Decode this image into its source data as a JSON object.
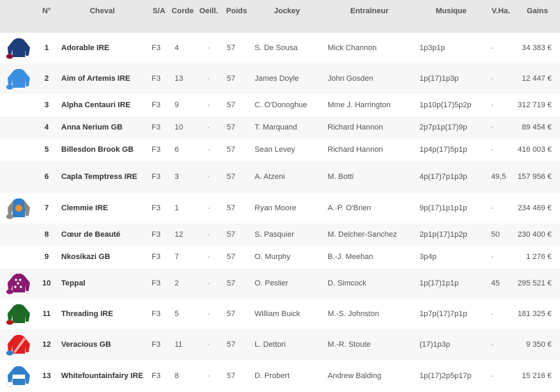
{
  "headers": {
    "silk": "",
    "num": "N°",
    "cheval": "Cheval",
    "sa": "S/A",
    "corde": "Corde",
    "oeill": "Oeill.",
    "poids": "Poids",
    "jockey": "Jockey",
    "entraineur": "Entraîneur",
    "musique": "Musique",
    "vha": "V.Ha.",
    "gains": "Gains"
  },
  "runners": [
    {
      "num": "1",
      "cheval": "Adorable IRE",
      "sa": "F3",
      "corde": "4",
      "oeill": "-",
      "poids": "57",
      "jockey": "S. De Sousa",
      "entraineur": "Mick Channon",
      "musique": "1p3p1p",
      "vha": "-",
      "gains": "34 383 €",
      "silk": {
        "body": "#1c3f7a",
        "sleeves": "#1c3f7a",
        "cap": "#8a1030",
        "mark": ""
      }
    },
    {
      "num": "2",
      "cheval": "Aim of Artemis IRE",
      "sa": "F3",
      "corde": "13",
      "oeill": "-",
      "poids": "57",
      "jockey": "James Doyle",
      "entraineur": "John Gosden",
      "musique": "1p(17)1p3p",
      "vha": "-",
      "gains": "12 447 €",
      "silk": {
        "body": "#3b8fe0",
        "sleeves": "#3b8fe0",
        "cap": "#3b8fe0",
        "mark": ""
      }
    },
    {
      "num": "3",
      "cheval": "Alpha Centauri IRE",
      "sa": "F3",
      "corde": "9",
      "oeill": "-",
      "poids": "57",
      "jockey": "C. O'Donoghue",
      "entraineur": "Mme J. Harrington",
      "musique": "1p10p(17)5p2p",
      "vha": "-",
      "gains": "312 719 €"
    },
    {
      "num": "4",
      "cheval": "Anna Nerium GB",
      "sa": "F3",
      "corde": "10",
      "oeill": "-",
      "poids": "57",
      "jockey": "T. Marquand",
      "entraineur": "Richard Hannon",
      "musique": "2p7p1p(17)9p",
      "vha": "-",
      "gains": "89 454 €"
    },
    {
      "num": "5",
      "cheval": "Billesdon Brook GB",
      "sa": "F3",
      "corde": "6",
      "oeill": "-",
      "poids": "57",
      "jockey": "Sean Levey",
      "entraineur": "Richard Hannon",
      "musique": "1p4p(17)5p1p",
      "vha": "-",
      "gains": "416 003 €"
    },
    {
      "num": "6",
      "cheval": "Capla Temptress IRE",
      "sa": "F3",
      "corde": "3",
      "oeill": "-",
      "poids": "57",
      "jockey": "A. Atzeni",
      "entraineur": "M. Botti",
      "musique": "4p(17)7p1p3p",
      "vha": "49,5",
      "gains": "157 956 €"
    },
    {
      "num": "7",
      "cheval": "Clemmie IRE",
      "sa": "F3",
      "corde": "1",
      "oeill": "-",
      "poids": "57",
      "jockey": "Ryan Moore",
      "entraineur": "A.-P. O'Brien",
      "musique": "9p(17)1p1p1p",
      "vha": "-",
      "gains": "234 469 €",
      "silk": {
        "body": "#2f7fc8",
        "sleeves": "#8a8a80",
        "cap": "#8a8a80",
        "mark": "disc"
      }
    },
    {
      "num": "8",
      "cheval": "Cœur de Beauté",
      "sa": "F3",
      "corde": "12",
      "oeill": "-",
      "poids": "57",
      "jockey": "S. Pasquier",
      "entraineur": "M. Delcher-Sanchez",
      "musique": "2p1p(17)1p2p",
      "vha": "50",
      "gains": "230 400 €"
    },
    {
      "num": "9",
      "cheval": "Nkosikazi GB",
      "sa": "F3",
      "corde": "7",
      "oeill": "-",
      "poids": "57",
      "jockey": "O. Murphy",
      "entraineur": "B.-J. Meehan",
      "musique": "3p4p",
      "vha": "-",
      "gains": "1 276 €"
    },
    {
      "num": "10",
      "cheval": "Teppal",
      "sa": "F3",
      "corde": "2",
      "oeill": "-",
      "poids": "57",
      "jockey": "O. Peslier",
      "entraineur": "D. Simcock",
      "musique": "1p(17)1p1p",
      "vha": "45",
      "gains": "295 521 €",
      "silk": {
        "body": "#8a1a6e",
        "sleeves": "#8a1a6e",
        "cap": "#8a1a6e",
        "mark": "spots"
      }
    },
    {
      "num": "11",
      "cheval": "Threading IRE",
      "sa": "F3",
      "corde": "5",
      "oeill": "-",
      "poids": "57",
      "jockey": "William Buick",
      "entraineur": "M.-S. Johnston",
      "musique": "1p7p(17)7p1p",
      "vha": "-",
      "gains": "181 325 €",
      "silk": {
        "body": "#1e6a24",
        "sleeves": "#1e6a24",
        "cap": "#b01818",
        "mark": ""
      }
    },
    {
      "num": "12",
      "cheval": "Veracious GB",
      "sa": "F3",
      "corde": "11",
      "oeill": "-",
      "poids": "57",
      "jockey": "L. Dettori",
      "entraineur": "M.-R. Stoute",
      "musique": "(17)1p3p",
      "vha": "-",
      "gains": "9 350 €",
      "silk": {
        "body": "#e02020",
        "sleeves": "#e02020",
        "cap": "#2f7fc8",
        "mark": "sash"
      }
    },
    {
      "num": "13",
      "cheval": "Whitefountainfairy IRE",
      "sa": "F3",
      "corde": "8",
      "oeill": "-",
      "poids": "57",
      "jockey": "D. Probert",
      "entraineur": "Andrew Balding",
      "musique": "1p(17)2p5p17p",
      "vha": "-",
      "gains": "15 216 €",
      "silk": {
        "body": "#2f7fc8",
        "sleeves": "#2f7fc8",
        "cap": "#ffffff",
        "mark": "hoop"
      }
    }
  ]
}
